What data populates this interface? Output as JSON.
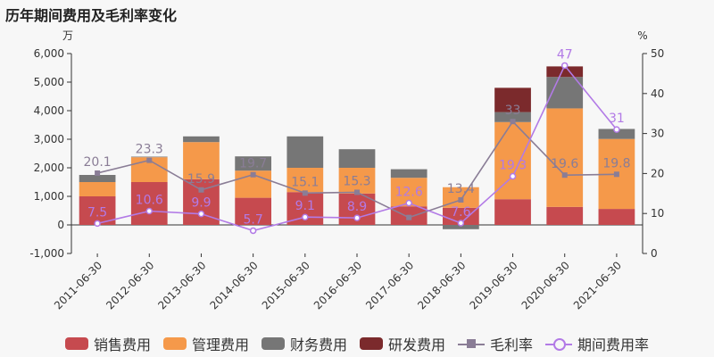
{
  "title": "历年期间费用及毛利率变化",
  "colors": {
    "sales": "#c64a4f",
    "admin": "#f5994a",
    "finance": "#767676",
    "rnd": "#7b2a2c",
    "gross": "#8a7d96",
    "period": "#b27ae6"
  },
  "legend": {
    "sales": "销售费用",
    "admin": "管理费用",
    "finance": "财务费用",
    "rnd": "研发费用",
    "gross": "毛利率",
    "period": "期间费用率"
  },
  "chart_data": {
    "type": "bar",
    "stacked": true,
    "categories": [
      "2011-06-30",
      "2012-06-30",
      "2013-06-30",
      "2014-06-30",
      "2015-06-30",
      "2016-06-30",
      "2017-06-30",
      "2018-06-30",
      "2019-06-30",
      "2020-06-30",
      "2021-06-30"
    ],
    "left_axis": {
      "unit": "万",
      "ylim": [
        -1000,
        6000
      ],
      "ticks": [
        -1000,
        0,
        1000,
        2000,
        3000,
        4000,
        5000,
        6000
      ],
      "tick_labels": [
        "-1,000",
        "0",
        "1,000",
        "2,000",
        "3,000",
        "4,000",
        "5,000",
        "6,000"
      ]
    },
    "right_axis": {
      "unit": "%",
      "ylim": [
        0,
        50
      ],
      "ticks": [
        0,
        10,
        20,
        30,
        40,
        50
      ]
    },
    "series": [
      {
        "key": "sales",
        "name": "销售费用",
        "values": [
          1000,
          1500,
          1600,
          950,
          1150,
          1100,
          650,
          600,
          900,
          630,
          560
        ]
      },
      {
        "key": "admin",
        "name": "管理费用",
        "values": [
          500,
          870,
          1300,
          950,
          850,
          900,
          1000,
          720,
          2700,
          3450,
          2450
        ]
      },
      {
        "key": "finance",
        "name": "财务费用",
        "values": [
          250,
          20,
          200,
          500,
          1100,
          650,
          300,
          -150,
          350,
          1100,
          350
        ]
      },
      {
        "key": "rnd",
        "name": "研发费用",
        "values": [
          0,
          0,
          0,
          0,
          0,
          0,
          0,
          0,
          850,
          370,
          0
        ]
      }
    ],
    "lines": [
      {
        "key": "gross",
        "name": "毛利率",
        "axis": "right",
        "values": [
          20.1,
          23.3,
          15.9,
          19.7,
          15.1,
          15.3,
          9,
          13.4,
          33,
          19.6,
          19.8
        ],
        "labels": [
          "20.1",
          "23.3",
          "15.9",
          "19.7",
          "15.1",
          "15.3",
          "",
          "13.4",
          "33",
          "19.6",
          "19.8"
        ]
      },
      {
        "key": "period",
        "name": "期间费用率",
        "axis": "right",
        "values": [
          7.5,
          10.6,
          9.9,
          5.7,
          9.1,
          8.9,
          12.6,
          7.6,
          19.3,
          47,
          31
        ],
        "labels": [
          "7.5",
          "10.6",
          "9.9",
          "5.7",
          "9.1",
          "8.9",
          "12.6",
          "7.6",
          "19.3",
          "47",
          "31"
        ]
      }
    ]
  }
}
